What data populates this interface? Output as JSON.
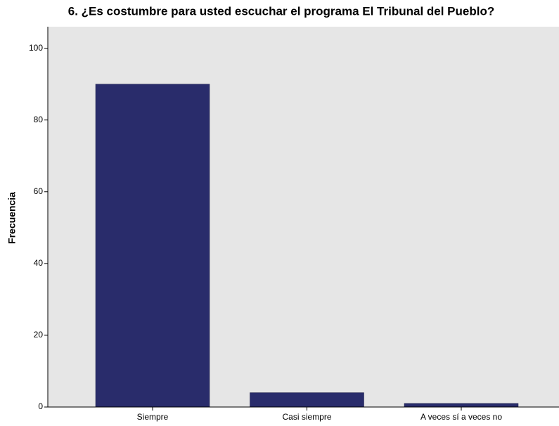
{
  "chart_data": {
    "type": "bar",
    "title": "6. ¿Es costumbre para usted escuchar el programa El Tribunal del Pueblo?",
    "ylabel": "Frecuencia",
    "categories": [
      "Siempre",
      "Casi siempre",
      "A veces sí a veces no"
    ],
    "values": [
      90,
      4,
      1
    ],
    "color": "#292c6b",
    "ylim": [
      0,
      106
    ],
    "yticks": [
      0,
      20,
      40,
      60,
      80,
      100
    ],
    "grid": false
  }
}
